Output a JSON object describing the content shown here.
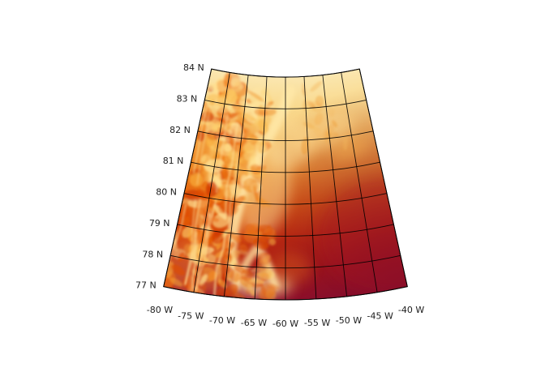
{
  "figure": {
    "background_color": "#ffffff",
    "kind": "geographic map figure: fan-shaped conic graticule filled with heat-style colormap raster"
  },
  "map": {
    "graticule_color": "#000000",
    "lat_range": [
      77,
      84
    ],
    "lon_range": [
      -80,
      -40
    ],
    "lat_grid_interval_deg": 1,
    "lon_grid_interval_deg": 5,
    "lat_ticks": [
      {
        "value": 84,
        "label": "84 N"
      },
      {
        "value": 83,
        "label": "83 N"
      },
      {
        "value": 82,
        "label": "82 N"
      },
      {
        "value": 81,
        "label": "81 N"
      },
      {
        "value": 80,
        "label": "80 N"
      },
      {
        "value": 79,
        "label": "79 N"
      },
      {
        "value": 78,
        "label": "78 N"
      },
      {
        "value": 77,
        "label": "77 N"
      }
    ],
    "lon_ticks": [
      {
        "value": -80,
        "label": "-80 W"
      },
      {
        "value": -75,
        "label": "-75 W"
      },
      {
        "value": -70,
        "label": "-70 W"
      },
      {
        "value": -65,
        "label": "-65 W"
      },
      {
        "value": -60,
        "label": "-60 W"
      },
      {
        "value": -55,
        "label": "-55 W"
      },
      {
        "value": -50,
        "label": "-50 W"
      },
      {
        "value": -45,
        "label": "-45 W"
      },
      {
        "value": -40,
        "label": "-40 W"
      }
    ],
    "colormap_low_to_high": [
      "#97122a",
      "#b31b10",
      "#cf3508",
      "#e36310",
      "#ef9330",
      "#f6bc5e",
      "#f9d98d",
      "#fbe7b0"
    ],
    "shading": {
      "north_band": "pale cream yellow",
      "west_side": "mottled bright orange/yellow rugged relief",
      "southeast": "smooth dark red fading to maroon at corner",
      "central_channel": "pale yellow diagonal streak"
    }
  }
}
